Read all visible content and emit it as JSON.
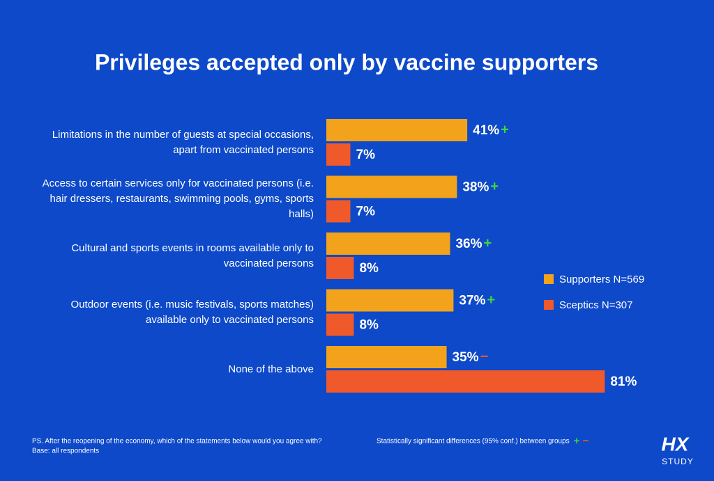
{
  "chart_data": {
    "type": "bar",
    "orientation": "horizontal",
    "title": "Privileges accepted only by vaccine supporters",
    "categories": [
      "Limitations in the number of guests at special occasions, apart from vaccinated persons",
      "Access to certain services only for vaccinated persons (i.e. hair dressers, restaurants, swimming pools, gyms, sports halls)",
      "Cultural and sports events in rooms available only to vaccinated persons",
      "Outdoor events (i.e. music festivals, sports matches) available only to vaccinated persons",
      "None of the above"
    ],
    "series": [
      {
        "name": "Supporters N=569",
        "color": "#f2a31b",
        "values": [
          41,
          38,
          36,
          37,
          35
        ],
        "value_labels": [
          "41%",
          "38%",
          "36%",
          "37%",
          "35%"
        ],
        "significance": [
          "+",
          "+",
          "+",
          "+",
          "−"
        ]
      },
      {
        "name": "Sceptics N=307",
        "color": "#f0592a",
        "values": [
          7,
          7,
          8,
          8,
          81
        ],
        "value_labels": [
          "7%",
          "7%",
          "8%",
          "8%",
          "81%"
        ]
      }
    ],
    "significance_legend": {
      "text": "Statistically significant differences (95% conf.) between groups",
      "symbols": [
        {
          "symbol": "+",
          "color": "#3fd63f"
        },
        {
          "symbol": "−",
          "color": "#f0592a"
        }
      ]
    },
    "footnote": [
      "PS. After the reopening of the economy, which of the statements below would you agree with?",
      "Base: all respondents"
    ],
    "logo": [
      "HX",
      "STUDY"
    ]
  }
}
